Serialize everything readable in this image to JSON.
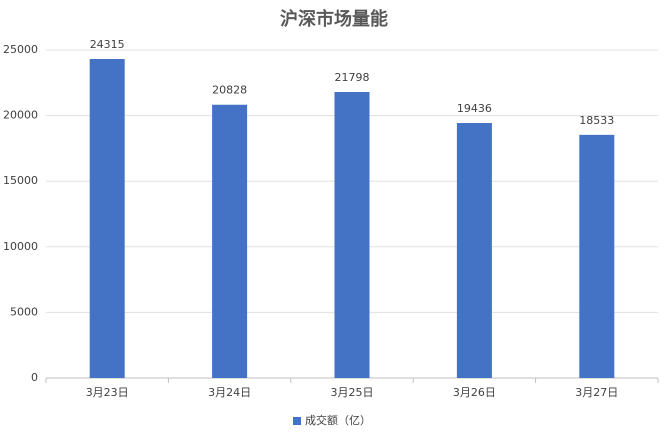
{
  "chart_data": {
    "type": "bar",
    "title": "沪深市场量能",
    "categories": [
      "3月23日",
      "3月24日",
      "3月25日",
      "3月26日",
      "3月27日"
    ],
    "series": [
      {
        "name": "成交额（亿）",
        "color": "#4472c4",
        "values": [
          24315,
          20828,
          21798,
          19436,
          18533
        ]
      }
    ],
    "ylim": [
      0,
      25000
    ],
    "yticks": [
      0,
      5000,
      10000,
      15000,
      20000,
      25000
    ],
    "grid": true,
    "legend": "bottom"
  }
}
